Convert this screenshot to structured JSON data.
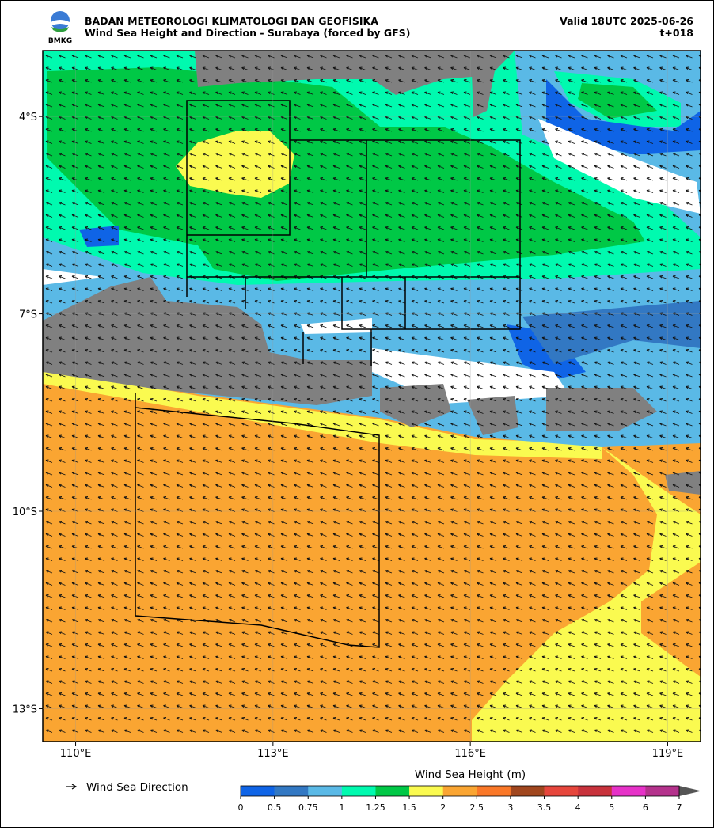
{
  "header": {
    "org": "BADAN METEOROLOGI KLIMATOLOGI DAN GEOFISIKA",
    "subtitle": "Wind Sea Height and Direction - Surabaya (forced by GFS)",
    "valid": "Valid 18UTC 2025-06-26",
    "lead": "t+018",
    "logo": "BMKG"
  },
  "map": {
    "xlim": [
      109.5,
      119.5
    ],
    "ylim": [
      -13.5,
      -3
    ],
    "xticks": [
      {
        "value": 110,
        "label": "110°E"
      },
      {
        "value": 113,
        "label": "113°E"
      },
      {
        "value": 116,
        "label": "116°E"
      },
      {
        "value": 119,
        "label": "119°E"
      }
    ],
    "yticks": [
      {
        "value": -4,
        "label": "4°S"
      },
      {
        "value": -7,
        "label": "7°S"
      },
      {
        "value": -10,
        "label": "10°S"
      },
      {
        "value": -13,
        "label": "13°S"
      }
    ],
    "grid": true
  },
  "legend": {
    "arrow_label": "Wind Sea Direction"
  },
  "colorbar": {
    "title": "Wind Sea Height (m)",
    "ticks": [
      0,
      0.5,
      0.75,
      1,
      1.25,
      1.5,
      2,
      2.5,
      3,
      3.5,
      4,
      5,
      6,
      7
    ],
    "colors": [
      "#0f64e6",
      "#3278c3",
      "#5ab9e6",
      "#00faaf",
      "#00c846",
      "#fafa50",
      "#faa532",
      "#fa7828",
      "#a0461e",
      "#e6463c",
      "#c8323c",
      "#e632c8",
      "#b4328c"
    ],
    "extend_color": "#555555"
  }
}
